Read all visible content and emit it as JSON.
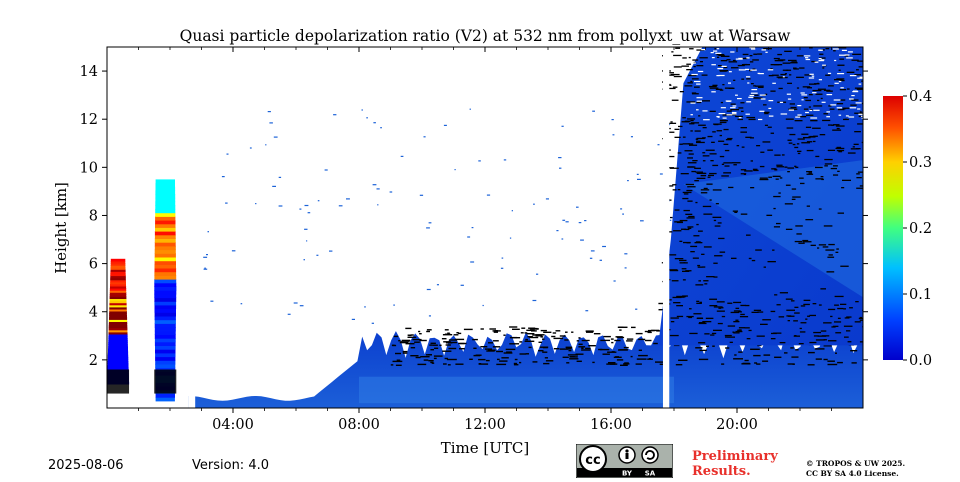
{
  "chart_data": {
    "type": "heatmap",
    "title": "Quasi particle depolarization ratio (V2) at 532 nm from pollyxt_uw at Warsaw",
    "xlabel": "Time [UTC]",
    "ylabel": "Height [km]",
    "x_unit_range": [
      "00:00",
      "24:00"
    ],
    "xlim_hours": [
      0,
      24
    ],
    "ylim": [
      0,
      15
    ],
    "x_ticks": [
      {
        "value": 4,
        "label": "04:00"
      },
      {
        "value": 8,
        "label": "08:00"
      },
      {
        "value": 12,
        "label": "12:00"
      },
      {
        "value": 16,
        "label": "16:00"
      },
      {
        "value": 20,
        "label": "20:00"
      }
    ],
    "y_ticks": [
      {
        "value": 2,
        "label": "2"
      },
      {
        "value": 4,
        "label": "4"
      },
      {
        "value": 6,
        "label": "6"
      },
      {
        "value": 8,
        "label": "8"
      },
      {
        "value": 10,
        "label": "10"
      },
      {
        "value": 12,
        "label": "12"
      },
      {
        "value": 14,
        "label": "14"
      }
    ],
    "colorbar": {
      "min": 0.0,
      "max": 0.4,
      "ticks": [
        "0.0",
        "0.1",
        "0.2",
        "0.3",
        "0.4"
      ],
      "colormap": "jet"
    },
    "features": [
      {
        "description": "low cloud/aerosol layer with high depol",
        "time_start": 0.0,
        "time_end": 0.7,
        "height_bottom": 1.0,
        "height_top": 6.2,
        "value_max": 0.4
      },
      {
        "description": "tall column with high depol",
        "time_start": 1.5,
        "time_end": 2.2,
        "height_bottom": 0.3,
        "height_top": 9.5,
        "value_max": 0.35
      },
      {
        "description": "boundary layer",
        "time_start": 2.6,
        "time_end": 24.0,
        "height_bottom": 0.0,
        "height_top": 3.5,
        "value_max": 0.1
      },
      {
        "description": "upper cloud region",
        "time_start": 17.5,
        "time_end": 24.0,
        "height_bottom": 2.5,
        "height_top": 15.0,
        "value_max": 0.1
      }
    ],
    "gaps_hours": [
      [
        2.6,
        2.8
      ],
      [
        17.65,
        17.85
      ]
    ]
  },
  "footer": {
    "date": "2025-08-06",
    "version": "Version: 4.0",
    "preliminary_line1": "Preliminary",
    "preliminary_line2": "Results.",
    "copyright_line1": "© TROPOS & UW 2025.",
    "copyright_line2": "CC BY SA 4.0 License."
  },
  "license_badge": {
    "labels": [
      "BY",
      "SA"
    ],
    "icon": "cc-by-sa-icon"
  },
  "colors": {
    "no_data": "#ffffff",
    "cloud_black": "#000000",
    "prelim": "#e8302b"
  }
}
